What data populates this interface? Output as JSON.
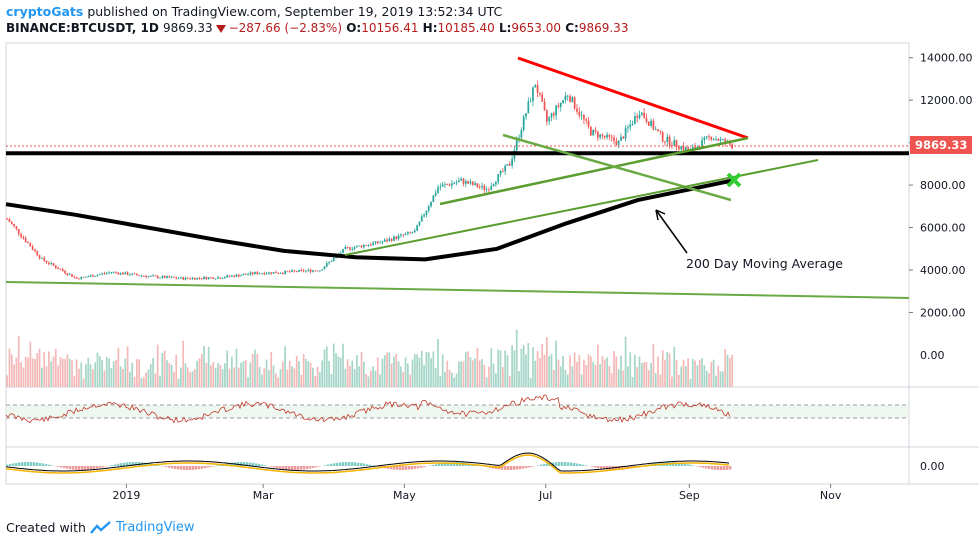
{
  "header": {
    "author": "cryptoGats",
    "published_text": "published on TradingView.com, September 19, 2019 13:52:34 UTC",
    "symbol": "BINANCE:BTCUSDT, 1D",
    "last": "9869.33",
    "change": "−287.66 (−2.83%)",
    "open_label": "O:",
    "open": "10156.41",
    "high_label": "H:",
    "high": "10185.40",
    "low_label": "L:",
    "low": "9653.00",
    "close_label": "C:",
    "close": "9869.33"
  },
  "footer": {
    "created_with": "Created with",
    "brand": "TradingView"
  },
  "colors": {
    "up": "#26a69a",
    "down": "#ef5350",
    "price_badge": "#ef5350",
    "resistance": "#ff0000",
    "support": "#000000",
    "trend": "#5a9e2f",
    "ma200": "#000000",
    "cross": "#33cc33"
  },
  "chart_data": {
    "type": "candlestick",
    "title": "BINANCE:BTCUSDT, 1D",
    "price_axis": {
      "ticks": [
        "14000.00",
        "12000.00",
        "10000.00",
        "8000.00",
        "6000.00",
        "4000.00",
        "2000.00"
      ],
      "ylim": [
        2000,
        14000
      ]
    },
    "volume_axis": {
      "ticks": [
        "0.00"
      ]
    },
    "macd_axis": {
      "ticks": [
        "0.00"
      ]
    },
    "x_ticks": [
      "2019",
      "Mar",
      "May",
      "Jul",
      "Sep",
      "Nov"
    ],
    "last_price_label": "9869.33",
    "horizontal_level": 9500,
    "series": [
      {
        "name": "BTCUSDT close (approx.)",
        "x": [
          "2018-11-10",
          "2018-11-25",
          "2018-12-10",
          "2018-12-25",
          "2019-01-10",
          "2019-01-25",
          "2019-02-10",
          "2019-02-25",
          "2019-03-10",
          "2019-03-25",
          "2019-04-05",
          "2019-04-20",
          "2019-05-05",
          "2019-05-15",
          "2019-05-25",
          "2019-06-05",
          "2019-06-15",
          "2019-06-26",
          "2019-07-01",
          "2019-07-10",
          "2019-07-20",
          "2019-08-01",
          "2019-08-10",
          "2019-08-20",
          "2019-09-01",
          "2019-09-10",
          "2019-09-19"
        ],
        "values": [
          6400,
          4500,
          3600,
          3900,
          3700,
          3600,
          3650,
          3850,
          3900,
          4000,
          5000,
          5300,
          5800,
          7900,
          8200,
          7800,
          9000,
          12800,
          11000,
          12300,
          10500,
          10000,
          11500,
          10200,
          9600,
          10300,
          9869
        ]
      },
      {
        "name": "200 Day Moving Average (approx.)",
        "x": [
          "2018-11-10",
          "2018-12-10",
          "2019-01-10",
          "2019-02-10",
          "2019-03-10",
          "2019-04-10",
          "2019-05-10",
          "2019-06-10",
          "2019-07-10",
          "2019-08-10",
          "2019-09-19"
        ],
        "values": [
          7100,
          6600,
          6000,
          5400,
          4900,
          4600,
          4500,
          5000,
          6200,
          7300,
          8200
        ]
      }
    ],
    "annotations": [
      {
        "type": "text",
        "text": "200 Day Moving Average"
      },
      {
        "type": "trendline",
        "name": "descending resistance"
      },
      {
        "type": "trendline",
        "name": "ascending support"
      },
      {
        "type": "marker",
        "name": "projected intersection"
      }
    ]
  }
}
